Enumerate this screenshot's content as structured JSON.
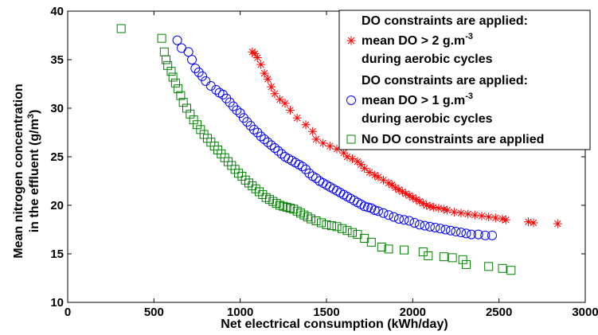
{
  "chart_data": {
    "type": "scatter",
    "title": "",
    "xlabel": "Net electrical consumption (kWh/day)",
    "ylabel_line1": "Mean nitrogen concentration",
    "ylabel_line2": "in the effluent (g/m",
    "ylabel_sup": "3",
    "ylabel_tail": ")",
    "xlim": [
      0,
      3000
    ],
    "ylim": [
      10,
      40
    ],
    "xticks": [
      "0",
      "500",
      "1000",
      "1500",
      "2000",
      "2500",
      "3000"
    ],
    "yticks": [
      "10",
      "15",
      "20",
      "25",
      "30",
      "35",
      "40"
    ],
    "grid": false,
    "legend_position": "top-right",
    "legend": [
      {
        "marker": "asterisk",
        "color": "#ff0000",
        "line1": "DO constraints are applied:",
        "line2_main": "mean DO > 2 g.m",
        "line2_sup": "-3",
        "line3": "during aerobic cycles"
      },
      {
        "marker": "circle",
        "color": "#0000ff",
        "line1": "DO constraints are applied:",
        "line2_main": "mean DO > 1 g.m",
        "line2_sup": "-3",
        "line3": "during aerobic cycles"
      },
      {
        "marker": "square",
        "color": "#008000",
        "line1": "No DO constraints are applied"
      }
    ],
    "series": [
      {
        "marker": "asterisk",
        "color": "#ff0000",
        "points": [
          [
            1070,
            35.8
          ],
          [
            1085,
            35.6
          ],
          [
            1100,
            35.2
          ],
          [
            1120,
            34.5
          ],
          [
            1140,
            33.6
          ],
          [
            1160,
            33.0
          ],
          [
            1180,
            32.2
          ],
          [
            1200,
            31.5
          ],
          [
            1230,
            30.9
          ],
          [
            1260,
            30.5
          ],
          [
            1290,
            29.8
          ],
          [
            1330,
            29.0
          ],
          [
            1380,
            28.3
          ],
          [
            1420,
            27.6
          ],
          [
            1440,
            26.8
          ],
          [
            1480,
            26.4
          ],
          [
            1520,
            26.1
          ],
          [
            1560,
            25.8
          ],
          [
            1600,
            25.4
          ],
          [
            1620,
            25.0
          ],
          [
            1650,
            24.8
          ],
          [
            1680,
            24.5
          ],
          [
            1700,
            24.2
          ],
          [
            1720,
            23.8
          ],
          [
            1750,
            23.4
          ],
          [
            1780,
            23.1
          ],
          [
            1800,
            22.9
          ],
          [
            1830,
            22.6
          ],
          [
            1860,
            22.3
          ],
          [
            1880,
            22.1
          ],
          [
            1900,
            21.8
          ],
          [
            1920,
            21.6
          ],
          [
            1940,
            21.4
          ],
          [
            1960,
            21.2
          ],
          [
            1980,
            21.0
          ],
          [
            2000,
            20.8
          ],
          [
            2020,
            20.6
          ],
          [
            2040,
            20.4
          ],
          [
            2060,
            20.2
          ],
          [
            2080,
            20.0
          ],
          [
            2100,
            19.9
          ],
          [
            2120,
            19.8
          ],
          [
            2150,
            19.7
          ],
          [
            2180,
            19.6
          ],
          [
            2200,
            19.5
          ],
          [
            2240,
            19.3
          ],
          [
            2280,
            19.2
          ],
          [
            2320,
            19.1
          ],
          [
            2360,
            19.0
          ],
          [
            2400,
            18.9
          ],
          [
            2440,
            18.8
          ],
          [
            2480,
            18.7
          ],
          [
            2520,
            18.6
          ],
          [
            2540,
            18.5
          ],
          [
            2670,
            18.3
          ],
          [
            2700,
            18.2
          ],
          [
            2840,
            18.1
          ]
        ]
      },
      {
        "marker": "circle",
        "color": "#0000ff",
        "points": [
          [
            635,
            37.0
          ],
          [
            660,
            36.2
          ],
          [
            700,
            35.8
          ],
          [
            720,
            35.0
          ],
          [
            740,
            34.1
          ],
          [
            760,
            33.7
          ],
          [
            780,
            33.3
          ],
          [
            800,
            32.8
          ],
          [
            830,
            32.3
          ],
          [
            860,
            31.9
          ],
          [
            880,
            31.6
          ],
          [
            900,
            31.4
          ],
          [
            920,
            31.0
          ],
          [
            940,
            30.6
          ],
          [
            960,
            30.2
          ],
          [
            980,
            29.8
          ],
          [
            1000,
            29.5
          ],
          [
            1020,
            29.0
          ],
          [
            1040,
            28.6
          ],
          [
            1060,
            28.2
          ],
          [
            1080,
            27.8
          ],
          [
            1100,
            27.5
          ],
          [
            1120,
            27.1
          ],
          [
            1140,
            26.8
          ],
          [
            1160,
            26.5
          ],
          [
            1180,
            26.2
          ],
          [
            1200,
            25.9
          ],
          [
            1220,
            25.6
          ],
          [
            1240,
            25.3
          ],
          [
            1260,
            25.0
          ],
          [
            1280,
            24.8
          ],
          [
            1300,
            24.6
          ],
          [
            1320,
            24.4
          ],
          [
            1340,
            24.2
          ],
          [
            1360,
            24.0
          ],
          [
            1380,
            23.7
          ],
          [
            1400,
            23.3
          ],
          [
            1420,
            23.0
          ],
          [
            1440,
            22.8
          ],
          [
            1460,
            22.5
          ],
          [
            1480,
            22.3
          ],
          [
            1500,
            22.1
          ],
          [
            1520,
            21.9
          ],
          [
            1540,
            21.7
          ],
          [
            1560,
            21.5
          ],
          [
            1580,
            21.3
          ],
          [
            1600,
            21.1
          ],
          [
            1620,
            20.9
          ],
          [
            1640,
            20.7
          ],
          [
            1660,
            20.5
          ],
          [
            1680,
            20.3
          ],
          [
            1700,
            20.1
          ],
          [
            1720,
            19.9
          ],
          [
            1740,
            19.8
          ],
          [
            1760,
            19.7
          ],
          [
            1780,
            19.5
          ],
          [
            1800,
            19.4
          ],
          [
            1830,
            19.2
          ],
          [
            1860,
            19.0
          ],
          [
            1890,
            18.8
          ],
          [
            1920,
            18.6
          ],
          [
            1950,
            18.5
          ],
          [
            1980,
            18.4
          ],
          [
            2010,
            18.2
          ],
          [
            2040,
            18.0
          ],
          [
            2070,
            17.9
          ],
          [
            2100,
            17.8
          ],
          [
            2130,
            17.7
          ],
          [
            2160,
            17.6
          ],
          [
            2190,
            17.5
          ],
          [
            2220,
            17.4
          ],
          [
            2250,
            17.3
          ],
          [
            2280,
            17.2
          ],
          [
            2310,
            17.1
          ],
          [
            2340,
            17.0
          ],
          [
            2380,
            17.0
          ],
          [
            2420,
            16.9
          ],
          [
            2460,
            16.9
          ]
        ]
      },
      {
        "marker": "square",
        "color": "#008000",
        "points": [
          [
            310,
            38.2
          ],
          [
            545,
            37.2
          ],
          [
            560,
            35.8
          ],
          [
            570,
            35.0
          ],
          [
            580,
            34.4
          ],
          [
            600,
            33.8
          ],
          [
            610,
            33.2
          ],
          [
            625,
            32.6
          ],
          [
            640,
            32.0
          ],
          [
            655,
            31.3
          ],
          [
            670,
            30.6
          ],
          [
            690,
            30.0
          ],
          [
            710,
            29.4
          ],
          [
            730,
            28.8
          ],
          [
            750,
            28.3
          ],
          [
            770,
            27.8
          ],
          [
            790,
            27.3
          ],
          [
            810,
            26.9
          ],
          [
            830,
            26.5
          ],
          [
            850,
            26.1
          ],
          [
            870,
            25.7
          ],
          [
            890,
            25.3
          ],
          [
            910,
            24.9
          ],
          [
            930,
            24.5
          ],
          [
            950,
            24.1
          ],
          [
            970,
            23.7
          ],
          [
            990,
            23.3
          ],
          [
            1010,
            23.0
          ],
          [
            1030,
            22.6
          ],
          [
            1050,
            22.3
          ],
          [
            1070,
            22.0
          ],
          [
            1090,
            21.7
          ],
          [
            1110,
            21.4
          ],
          [
            1130,
            21.1
          ],
          [
            1150,
            20.8
          ],
          [
            1170,
            20.6
          ],
          [
            1190,
            20.4
          ],
          [
            1210,
            20.2
          ],
          [
            1230,
            20.0
          ],
          [
            1250,
            19.9
          ],
          [
            1270,
            19.8
          ],
          [
            1290,
            19.7
          ],
          [
            1310,
            19.6
          ],
          [
            1330,
            19.4
          ],
          [
            1350,
            19.2
          ],
          [
            1370,
            19.0
          ],
          [
            1390,
            18.8
          ],
          [
            1410,
            18.6
          ],
          [
            1440,
            18.4
          ],
          [
            1470,
            18.2
          ],
          [
            1500,
            18.0
          ],
          [
            1530,
            17.9
          ],
          [
            1560,
            17.8
          ],
          [
            1590,
            17.6
          ],
          [
            1620,
            17.4
          ],
          [
            1650,
            17.2
          ],
          [
            1680,
            17.0
          ],
          [
            1720,
            16.6
          ],
          [
            1760,
            16.2
          ],
          [
            1820,
            15.7
          ],
          [
            1860,
            15.5
          ],
          [
            1950,
            15.4
          ],
          [
            2060,
            15.2
          ],
          [
            2090,
            14.8
          ],
          [
            2180,
            14.7
          ],
          [
            2230,
            14.6
          ],
          [
            2290,
            14.4
          ],
          [
            2310,
            13.9
          ],
          [
            2440,
            13.7
          ],
          [
            2520,
            13.5
          ],
          [
            2570,
            13.3
          ]
        ]
      }
    ]
  }
}
